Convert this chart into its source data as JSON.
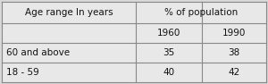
{
  "col_headers": [
    "Age range In years",
    "% of population",
    ""
  ],
  "sub_headers": [
    "",
    "1960",
    "1990"
  ],
  "rows": [
    [
      "60 and above",
      "35",
      "38"
    ],
    [
      "18 - 59",
      "40",
      "42"
    ]
  ],
  "background_color": "#d8d8d8",
  "cell_bg": "#e8e8e8",
  "border_color": "#888888",
  "text_color": "#111111",
  "font_size": 7.5,
  "c0": 2,
  "c1": 152,
  "c2": 226,
  "c3": 298,
  "r0": 92,
  "r1": 68,
  "r2": 46,
  "r3": 24,
  "r4": 2
}
